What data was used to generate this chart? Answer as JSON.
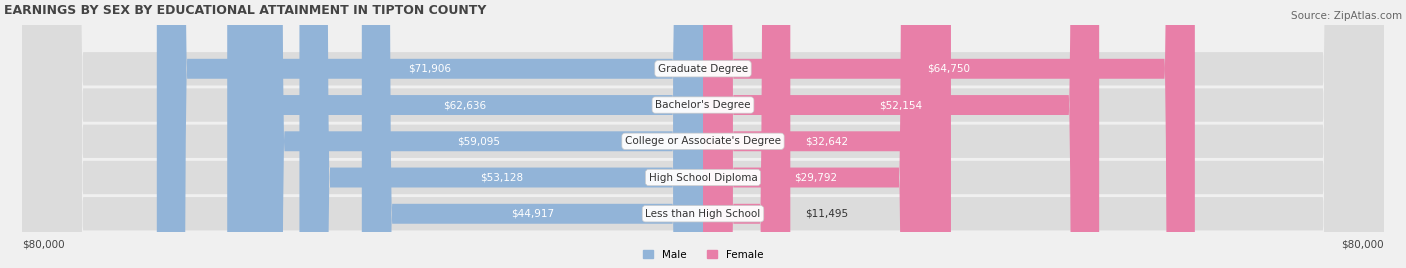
{
  "title": "EARNINGS BY SEX BY EDUCATIONAL ATTAINMENT IN TIPTON COUNTY",
  "source": "Source: ZipAtlas.com",
  "categories": [
    "Less than High School",
    "High School Diploma",
    "College or Associate's Degree",
    "Bachelor's Degree",
    "Graduate Degree"
  ],
  "male_values": [
    44917,
    53128,
    59095,
    62636,
    71906
  ],
  "female_values": [
    11495,
    29792,
    32642,
    52154,
    64750
  ],
  "male_color": "#92b4d8",
  "female_color": "#e87fa8",
  "male_label": "Male",
  "female_label": "Female",
  "max_value": 80000,
  "bg_color": "#f0f0f0",
  "row_bg": "#e8e8e8",
  "label_bg": "white",
  "axis_label_left": "$80,000",
  "axis_label_right": "$80,000",
  "title_fontsize": 9,
  "source_fontsize": 7.5,
  "bar_label_fontsize": 7.5,
  "category_fontsize": 7.5
}
